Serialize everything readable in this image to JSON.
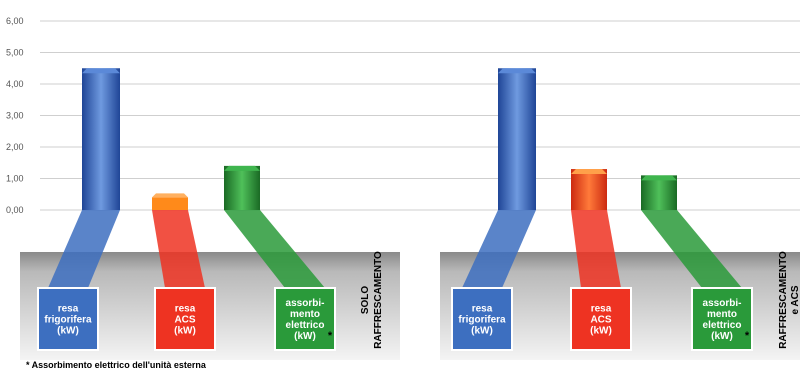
{
  "chart_data": {
    "type": "bar",
    "y_ticks": [
      "6,00",
      "5,00",
      "4,00",
      "3,00",
      "2,00",
      "1,00",
      "0,00"
    ],
    "ylim": [
      0,
      6
    ],
    "grid": true,
    "colors": {
      "blue": "#3d6fc0",
      "red": "#ee3322",
      "orange": "#ff8a1a",
      "green": "#2a9a3a"
    },
    "categories": [
      "resa frigorifera (kW)",
      "resa ACS (kW)",
      "assorbimento elettrico (kW) *"
    ],
    "groups": [
      {
        "label_lines": [
          "SOLO",
          "RAFFRESCAMENTO"
        ],
        "values": [
          4.5,
          0.4,
          1.4
        ]
      },
      {
        "label_lines": [
          "RAFFRESCAMENTO",
          "e ACS"
        ],
        "values": [
          4.5,
          1.3,
          1.1
        ]
      }
    ],
    "boxes": [
      {
        "lines": [
          "resa",
          "frigorifera",
          "(kW)"
        ],
        "star": ""
      },
      {
        "lines": [
          "resa",
          "ACS",
          "(kW)"
        ],
        "star": ""
      },
      {
        "lines": [
          "assorbi-",
          "mento",
          "elettrico",
          "(kW)"
        ],
        "star": "*"
      }
    ],
    "footnote": "* Assorbimento elettrico dell'unità esterna"
  }
}
